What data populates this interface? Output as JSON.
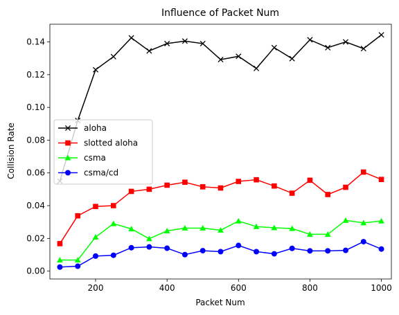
{
  "chart_data": {
    "type": "line",
    "title": "Influence of Packet Num",
    "xlabel": "Packet Num",
    "ylabel": "Collision Rate",
    "xlim": [
      72,
      1028
    ],
    "ylim": [
      -0.0048,
      0.1508
    ],
    "xticks": [
      200,
      400,
      600,
      800,
      1000
    ],
    "xtick_labels": [
      "200",
      "400",
      "600",
      "800",
      "1000"
    ],
    "yticks": [
      0.0,
      0.02,
      0.04,
      0.06,
      0.08,
      0.1,
      0.12,
      0.14
    ],
    "ytick_labels": [
      "0.00",
      "0.02",
      "0.04",
      "0.06",
      "0.08",
      "0.10",
      "0.12",
      "0.14"
    ],
    "grid": false,
    "legend_position": "center-left",
    "x": [
      100,
      150,
      200,
      250,
      300,
      350,
      400,
      450,
      500,
      550,
      600,
      650,
      700,
      750,
      800,
      850,
      900,
      950,
      1000
    ],
    "series": [
      {
        "name": "aloha",
        "color": "#000000",
        "marker": "x",
        "values": [
          0.055,
          0.092,
          0.123,
          0.131,
          0.1425,
          0.1345,
          0.139,
          0.1405,
          0.139,
          0.1292,
          0.1312,
          0.1238,
          0.1365,
          0.1298,
          0.1413,
          0.1365,
          0.14,
          0.1359,
          0.1443
        ]
      },
      {
        "name": "slotted aloha",
        "color": "#ff0000",
        "marker": "s",
        "values": [
          0.0168,
          0.0338,
          0.0395,
          0.04,
          0.0487,
          0.05,
          0.0525,
          0.0543,
          0.0515,
          0.0508,
          0.0548,
          0.0558,
          0.052,
          0.0476,
          0.0555,
          0.0468,
          0.0512,
          0.0605,
          0.056
        ]
      },
      {
        "name": "csma",
        "color": "#00ff00",
        "marker": "^",
        "values": [
          0.0068,
          0.0068,
          0.0208,
          0.029,
          0.0258,
          0.0198,
          0.0246,
          0.0263,
          0.0263,
          0.025,
          0.0306,
          0.0272,
          0.0265,
          0.026,
          0.0225,
          0.0225,
          0.031,
          0.0295,
          0.0306
        ]
      },
      {
        "name": "csma/cd",
        "color": "#0000ff",
        "marker": "o",
        "values": [
          0.0025,
          0.003,
          0.0092,
          0.0097,
          0.0143,
          0.0148,
          0.014,
          0.0101,
          0.0125,
          0.0119,
          0.0157,
          0.0119,
          0.0106,
          0.0139,
          0.0124,
          0.0124,
          0.0127,
          0.018,
          0.0135
        ]
      }
    ]
  }
}
